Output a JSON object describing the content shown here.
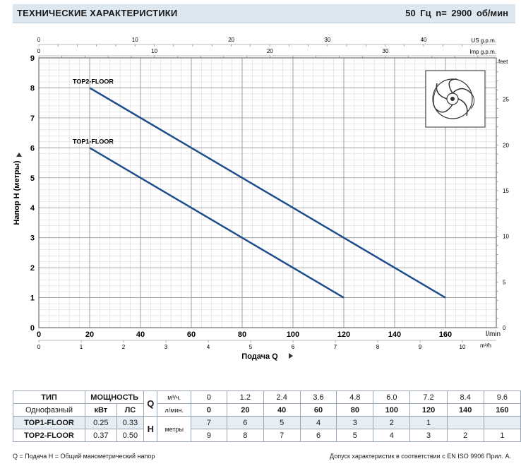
{
  "header": {
    "title": "ТЕХНИЧЕСКИЕ ХАРАКТЕРИСТИКИ",
    "speed": "50 Гц   n= 2900  об/мин"
  },
  "chart_data": {
    "type": "line",
    "ylabel": "Напор  H  (метры)",
    "xlabel": "Подача  Q",
    "x_unit_lmin": "l/min",
    "x_unit_m3h": "m³/h",
    "y_unit_feet": "feet",
    "x_unit_usgpm": "US g.p.m.",
    "x_unit_impgpm": "Imp g.p.m.",
    "xlim": [
      0,
      180
    ],
    "ylim": [
      0,
      9
    ],
    "x_ticks_lmin": [
      "0",
      "20",
      "40",
      "60",
      "80",
      "100",
      "120",
      "140",
      "160"
    ],
    "y_ticks": [
      "0",
      "1",
      "2",
      "3",
      "4",
      "5",
      "6",
      "7",
      "8",
      "9"
    ],
    "x_ticks_m3h": [
      "0",
      "1",
      "2",
      "3",
      "4",
      "5",
      "6",
      "7",
      "8",
      "9",
      "10"
    ],
    "y_ticks_feet": [
      "0",
      "5",
      "10",
      "15",
      "20",
      "25"
    ],
    "x_ticks_usgpm": [
      "0",
      "10",
      "20",
      "30",
      "40"
    ],
    "x_ticks_impgpm": [
      "0",
      "10",
      "20",
      "30"
    ],
    "grid": true,
    "series": [
      {
        "name": "TOP2-FLOOR",
        "color": "#1f4e8c",
        "x": [
          20,
          40,
          60,
          80,
          100,
          120,
          140,
          160
        ],
        "y": [
          8,
          7,
          6,
          5,
          4,
          3,
          2,
          1
        ]
      },
      {
        "name": "TOP1-FLOOR",
        "color": "#1f4e8c",
        "x": [
          20,
          40,
          60,
          80,
          100,
          120
        ],
        "y": [
          6,
          5,
          4,
          3,
          2,
          1
        ]
      }
    ]
  },
  "table": {
    "col_type": "ТИП",
    "col_power": "МОЩНОСТЬ",
    "phase": "Однофазный",
    "kw": "кВт",
    "hp": "ЛС",
    "q_label": "Q",
    "q_unit_m3": "м³/ч.",
    "q_unit_l": "л/мин.",
    "h_label": "H",
    "h_unit": "метры",
    "q_m3": [
      "0",
      "1.2",
      "2.4",
      "3.6",
      "4.8",
      "6.0",
      "7.2",
      "8.4",
      "9.6"
    ],
    "q_l": [
      "0",
      "20",
      "40",
      "60",
      "80",
      "100",
      "120",
      "140",
      "160"
    ],
    "rows": [
      {
        "name": "TOP1-FLOOR",
        "kw": "0.25",
        "hp": "0.33",
        "h": [
          "7",
          "6",
          "5",
          "4",
          "3",
          "2",
          "1",
          "",
          ""
        ]
      },
      {
        "name": "TOP2-FLOOR",
        "kw": "0.37",
        "hp": "0.50",
        "h": [
          "9",
          "8",
          "7",
          "6",
          "5",
          "4",
          "3",
          "2",
          "1"
        ]
      }
    ]
  },
  "footer": {
    "left": "Q = Подача   H = Общий манометрический напор",
    "right": "Допуск характеристик в соответствии с EN ISO 9906 Прил. А."
  }
}
